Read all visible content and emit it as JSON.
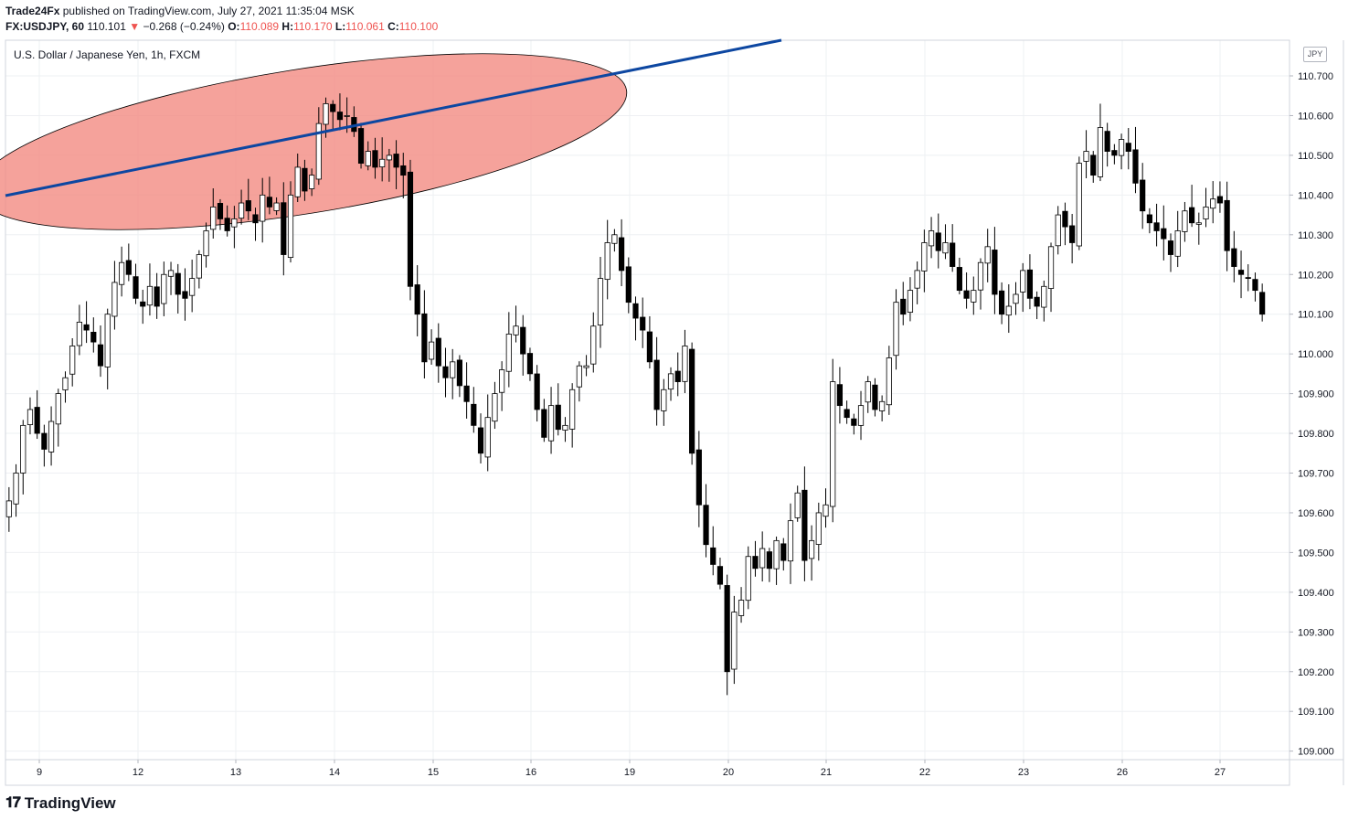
{
  "header": {
    "publisher": "Trade24Fx",
    "published_text": "published on TradingView.com, July 27, 2021 11:35:04 MSK",
    "symbol": "FX:USDJPY, 60",
    "last": "110.101",
    "change": "−0.268 (−0.24%)",
    "o_label": "O:",
    "o_value": "110.089",
    "h_label": "H:",
    "h_value": "110.170",
    "l_label": "L:",
    "l_value": "110.061",
    "c_label": "C:",
    "c_value": "110.100"
  },
  "instrument_label": "U.S. Dollar / Japanese Yen, 1h, FXCM",
  "currency_badge": "JPY",
  "footer": {
    "brand": "TradingView"
  },
  "colors": {
    "candle": "#000000",
    "grid": "#eef0f3",
    "trendline": "#0d47a1",
    "ellipse_fill": "#f28b82",
    "ellipse_stroke": "#000000",
    "down_marker": "#ef5350"
  },
  "chart_data": {
    "type": "candlestick",
    "title": "U.S. Dollar / Japanese Yen, 1h, FXCM",
    "y_axis": {
      "position": "right",
      "ylim": [
        108.96,
        110.79
      ],
      "ticks": [
        "110.700",
        "110.600",
        "110.500",
        "110.400",
        "110.300",
        "110.200",
        "110.100",
        "110.000",
        "109.900",
        "109.800",
        "109.700",
        "109.600",
        "109.500",
        "109.400",
        "109.300",
        "109.200",
        "109.100",
        "109.000"
      ]
    },
    "x_axis": {
      "ticks": [
        "9",
        "12",
        "13",
        "14",
        "15",
        "16",
        "19",
        "20",
        "21",
        "22",
        "23",
        "26",
        "27"
      ]
    },
    "grid": true,
    "closes": [
      109.63,
      109.7,
      109.82,
      109.86,
      109.8,
      109.76,
      109.83,
      109.9,
      109.94,
      110.02,
      110.08,
      110.06,
      110.03,
      109.97,
      110.1,
      110.18,
      110.23,
      110.2,
      110.14,
      110.12,
      110.17,
      110.12,
      110.2,
      110.21,
      110.15,
      110.14,
      110.19,
      110.25,
      110.31,
      110.37,
      110.34,
      110.31,
      110.34,
      110.38,
      110.36,
      110.33,
      110.4,
      110.37,
      110.38,
      110.25,
      110.4,
      110.47,
      110.41,
      110.45,
      110.58,
      110.63,
      110.61,
      110.59,
      110.6,
      110.56,
      110.48,
      110.51,
      110.47,
      110.49,
      110.5,
      110.47,
      110.45,
      110.17,
      110.1,
      109.98,
      110.03,
      109.97,
      109.94,
      109.98,
      109.92,
      109.88,
      109.82,
      109.75,
      109.84,
      109.9,
      109.96,
      110.05,
      110.07,
      110.0,
      109.95,
      109.86,
      109.79,
      109.87,
      109.81,
      109.82,
      109.91,
      109.97,
      109.97,
      110.07,
      110.19,
      110.28,
      110.3,
      110.21,
      110.13,
      110.09,
      110.06,
      109.98,
      109.86,
      109.91,
      109.95,
      109.93,
      110.02,
      109.75,
      109.62,
      109.52,
      109.47,
      109.42,
      109.2,
      109.35,
      109.38,
      109.49,
      109.46,
      109.51,
      109.46,
      109.53,
      109.48,
      109.58,
      109.65,
      109.48,
      109.53,
      109.6,
      109.62,
      109.93,
      109.87,
      109.84,
      109.82,
      109.87,
      109.93,
      109.86,
      109.88,
      109.99,
      110.13,
      110.1,
      110.16,
      110.21,
      110.28,
      110.31,
      110.26,
      110.28,
      110.22,
      110.16,
      110.14,
      110.16,
      110.23,
      110.27,
      110.15,
      110.1,
      110.12,
      110.15,
      110.21,
      110.14,
      110.12,
      110.17,
      110.27,
      110.35,
      110.32,
      110.28,
      110.48,
      110.51,
      110.45,
      110.57,
      110.51,
      110.5,
      110.54,
      110.51,
      110.43,
      110.36,
      110.33,
      110.31,
      110.29,
      110.25,
      110.31,
      110.36,
      110.33,
      110.33,
      110.37,
      110.39,
      110.38,
      110.26,
      110.22,
      110.2,
      110.19,
      110.16,
      110.1
    ]
  }
}
